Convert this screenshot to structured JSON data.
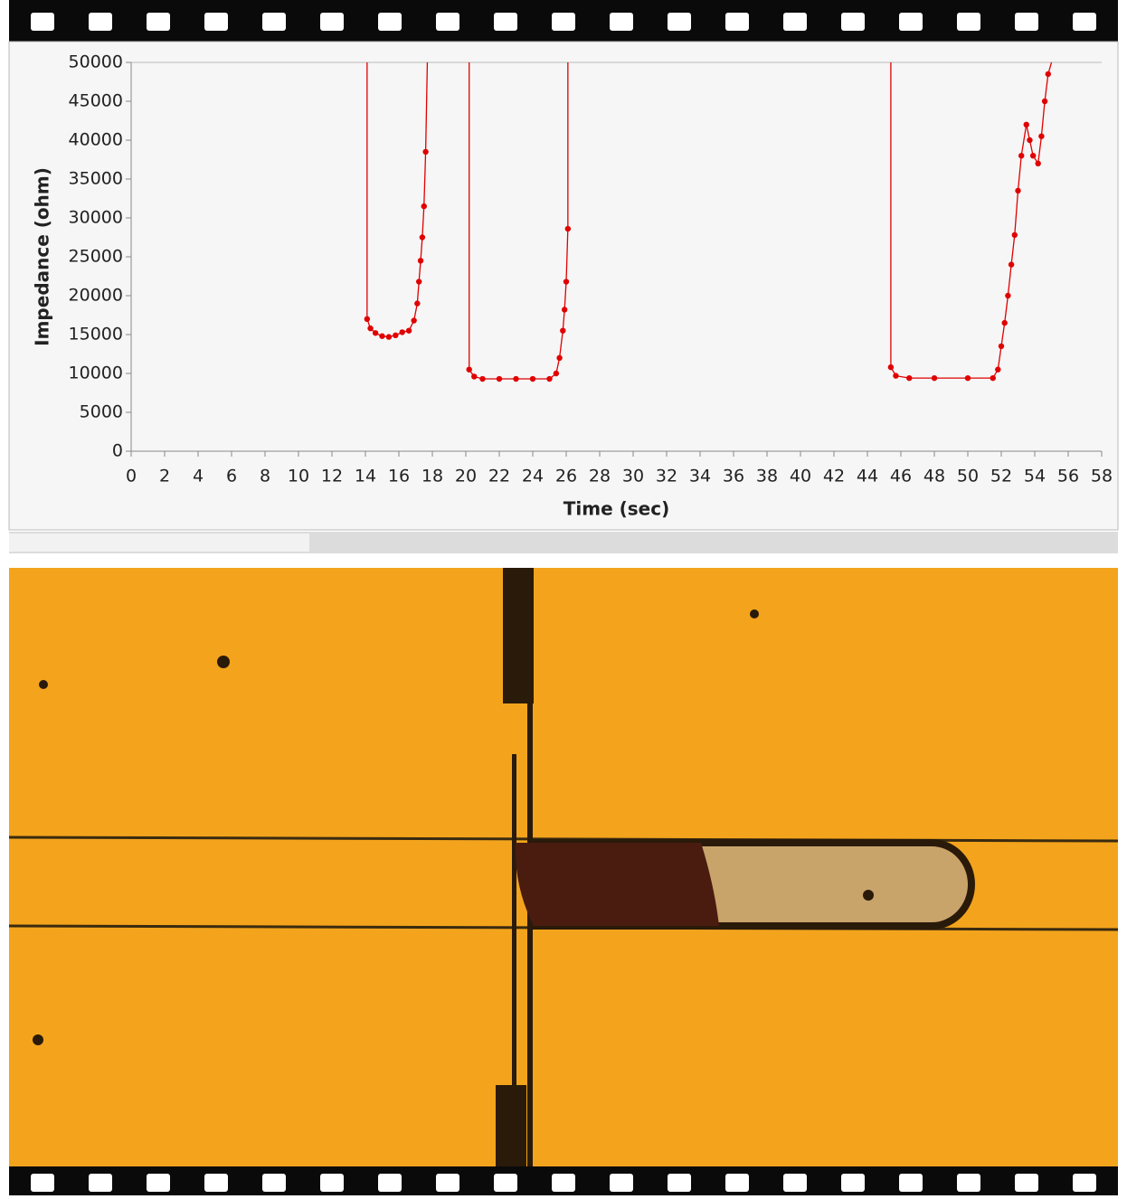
{
  "chart_data": {
    "type": "line",
    "xlabel": "Time (sec)",
    "ylabel": "Impedance (ohm)",
    "color": "#e00000",
    "x": [
      14.1,
      14.1,
      14.3,
      14.6,
      15,
      15.4,
      15.8,
      16.2,
      16.6,
      16.9,
      17.1,
      17.2,
      17.3,
      17.4,
      17.5,
      17.6,
      17.7,
      null,
      20.2,
      20.2,
      20.5,
      21,
      22,
      23,
      24,
      25,
      25.4,
      25.6,
      25.8,
      25.9,
      26,
      26.1,
      26.1,
      null,
      45.4,
      45.4,
      45.7,
      46.5,
      48,
      50,
      51.5,
      51.8,
      52,
      52.2,
      52.4,
      52.6,
      52.8,
      53,
      53.2,
      53.5,
      53.7,
      53.9,
      54.2,
      54.4,
      54.6,
      54.8,
      55
    ],
    "values": [
      50000,
      17000,
      15800,
      15200,
      14800,
      14700,
      14900,
      15300,
      15500,
      16800,
      19000,
      21800,
      24500,
      27500,
      31500,
      38500,
      50000,
      null,
      50000,
      10500,
      9600,
      9300,
      9300,
      9300,
      9300,
      9300,
      10000,
      12000,
      15500,
      18200,
      21800,
      28600,
      50000,
      null,
      50000,
      10800,
      9700,
      9400,
      9400,
      9400,
      9400,
      10500,
      13500,
      16500,
      20000,
      24000,
      27800,
      33500,
      38000,
      42000,
      40000,
      38000,
      37000,
      40500,
      45000,
      48500,
      50000
    ],
    "xlim": [
      0,
      58
    ],
    "ylim": [
      0,
      50000
    ],
    "xticks": [
      0,
      2,
      4,
      6,
      8,
      10,
      12,
      14,
      16,
      18,
      20,
      22,
      24,
      26,
      28,
      30,
      32,
      34,
      36,
      38,
      40,
      42,
      44,
      46,
      48,
      50,
      52,
      54,
      56,
      58
    ],
    "yticks": [
      0,
      5000,
      10000,
      15000,
      20000,
      25000,
      30000,
      35000,
      40000,
      45000,
      50000
    ]
  }
}
